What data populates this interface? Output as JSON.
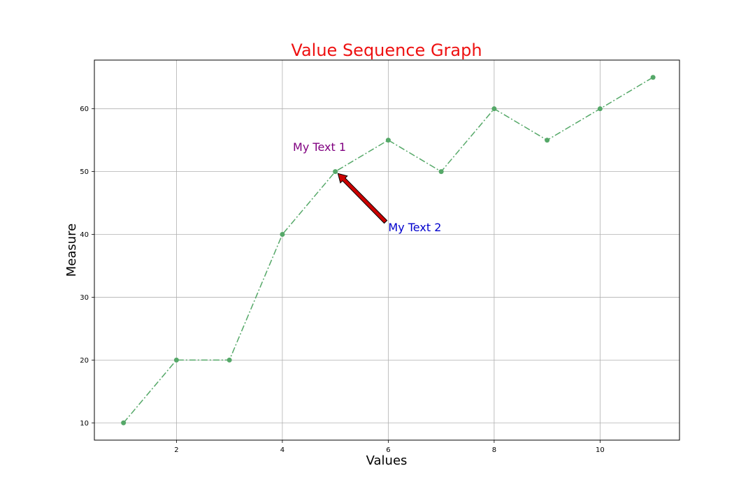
{
  "chart_data": {
    "type": "line",
    "title": "Value Sequence Graph",
    "xlabel": "Values",
    "ylabel": "Measure",
    "x": [
      1,
      2,
      3,
      4,
      5,
      6,
      7,
      8,
      9,
      10,
      11
    ],
    "y": [
      10,
      20,
      20,
      40,
      50,
      55,
      50,
      60,
      55,
      60,
      65
    ],
    "xlim": [
      0.45,
      11.5
    ],
    "ylim": [
      7.25,
      67.75
    ],
    "xticks": [
      "2",
      "4",
      "6",
      "8",
      "10"
    ],
    "yticks": [
      "10",
      "20",
      "30",
      "40",
      "50",
      "60"
    ],
    "grid": true,
    "line_style": "dash-dot",
    "marker": "circle",
    "annotations": [
      {
        "text": "My Text 1",
        "x": 4.2,
        "y": 53.3,
        "color": "#800080"
      },
      {
        "text": "My Text 2",
        "x": 6.0,
        "y": 40.5,
        "color": "#0000cd",
        "arrow_to": [
          5.05,
          49.7
        ],
        "arrow_from": [
          5.95,
          42.0
        ]
      }
    ]
  },
  "colors": {
    "title": "#ee1111",
    "line": "#55a868",
    "grid": "#b0b0b0",
    "arrow_fill": "#cc0000",
    "arrow_edge": "#000000"
  }
}
